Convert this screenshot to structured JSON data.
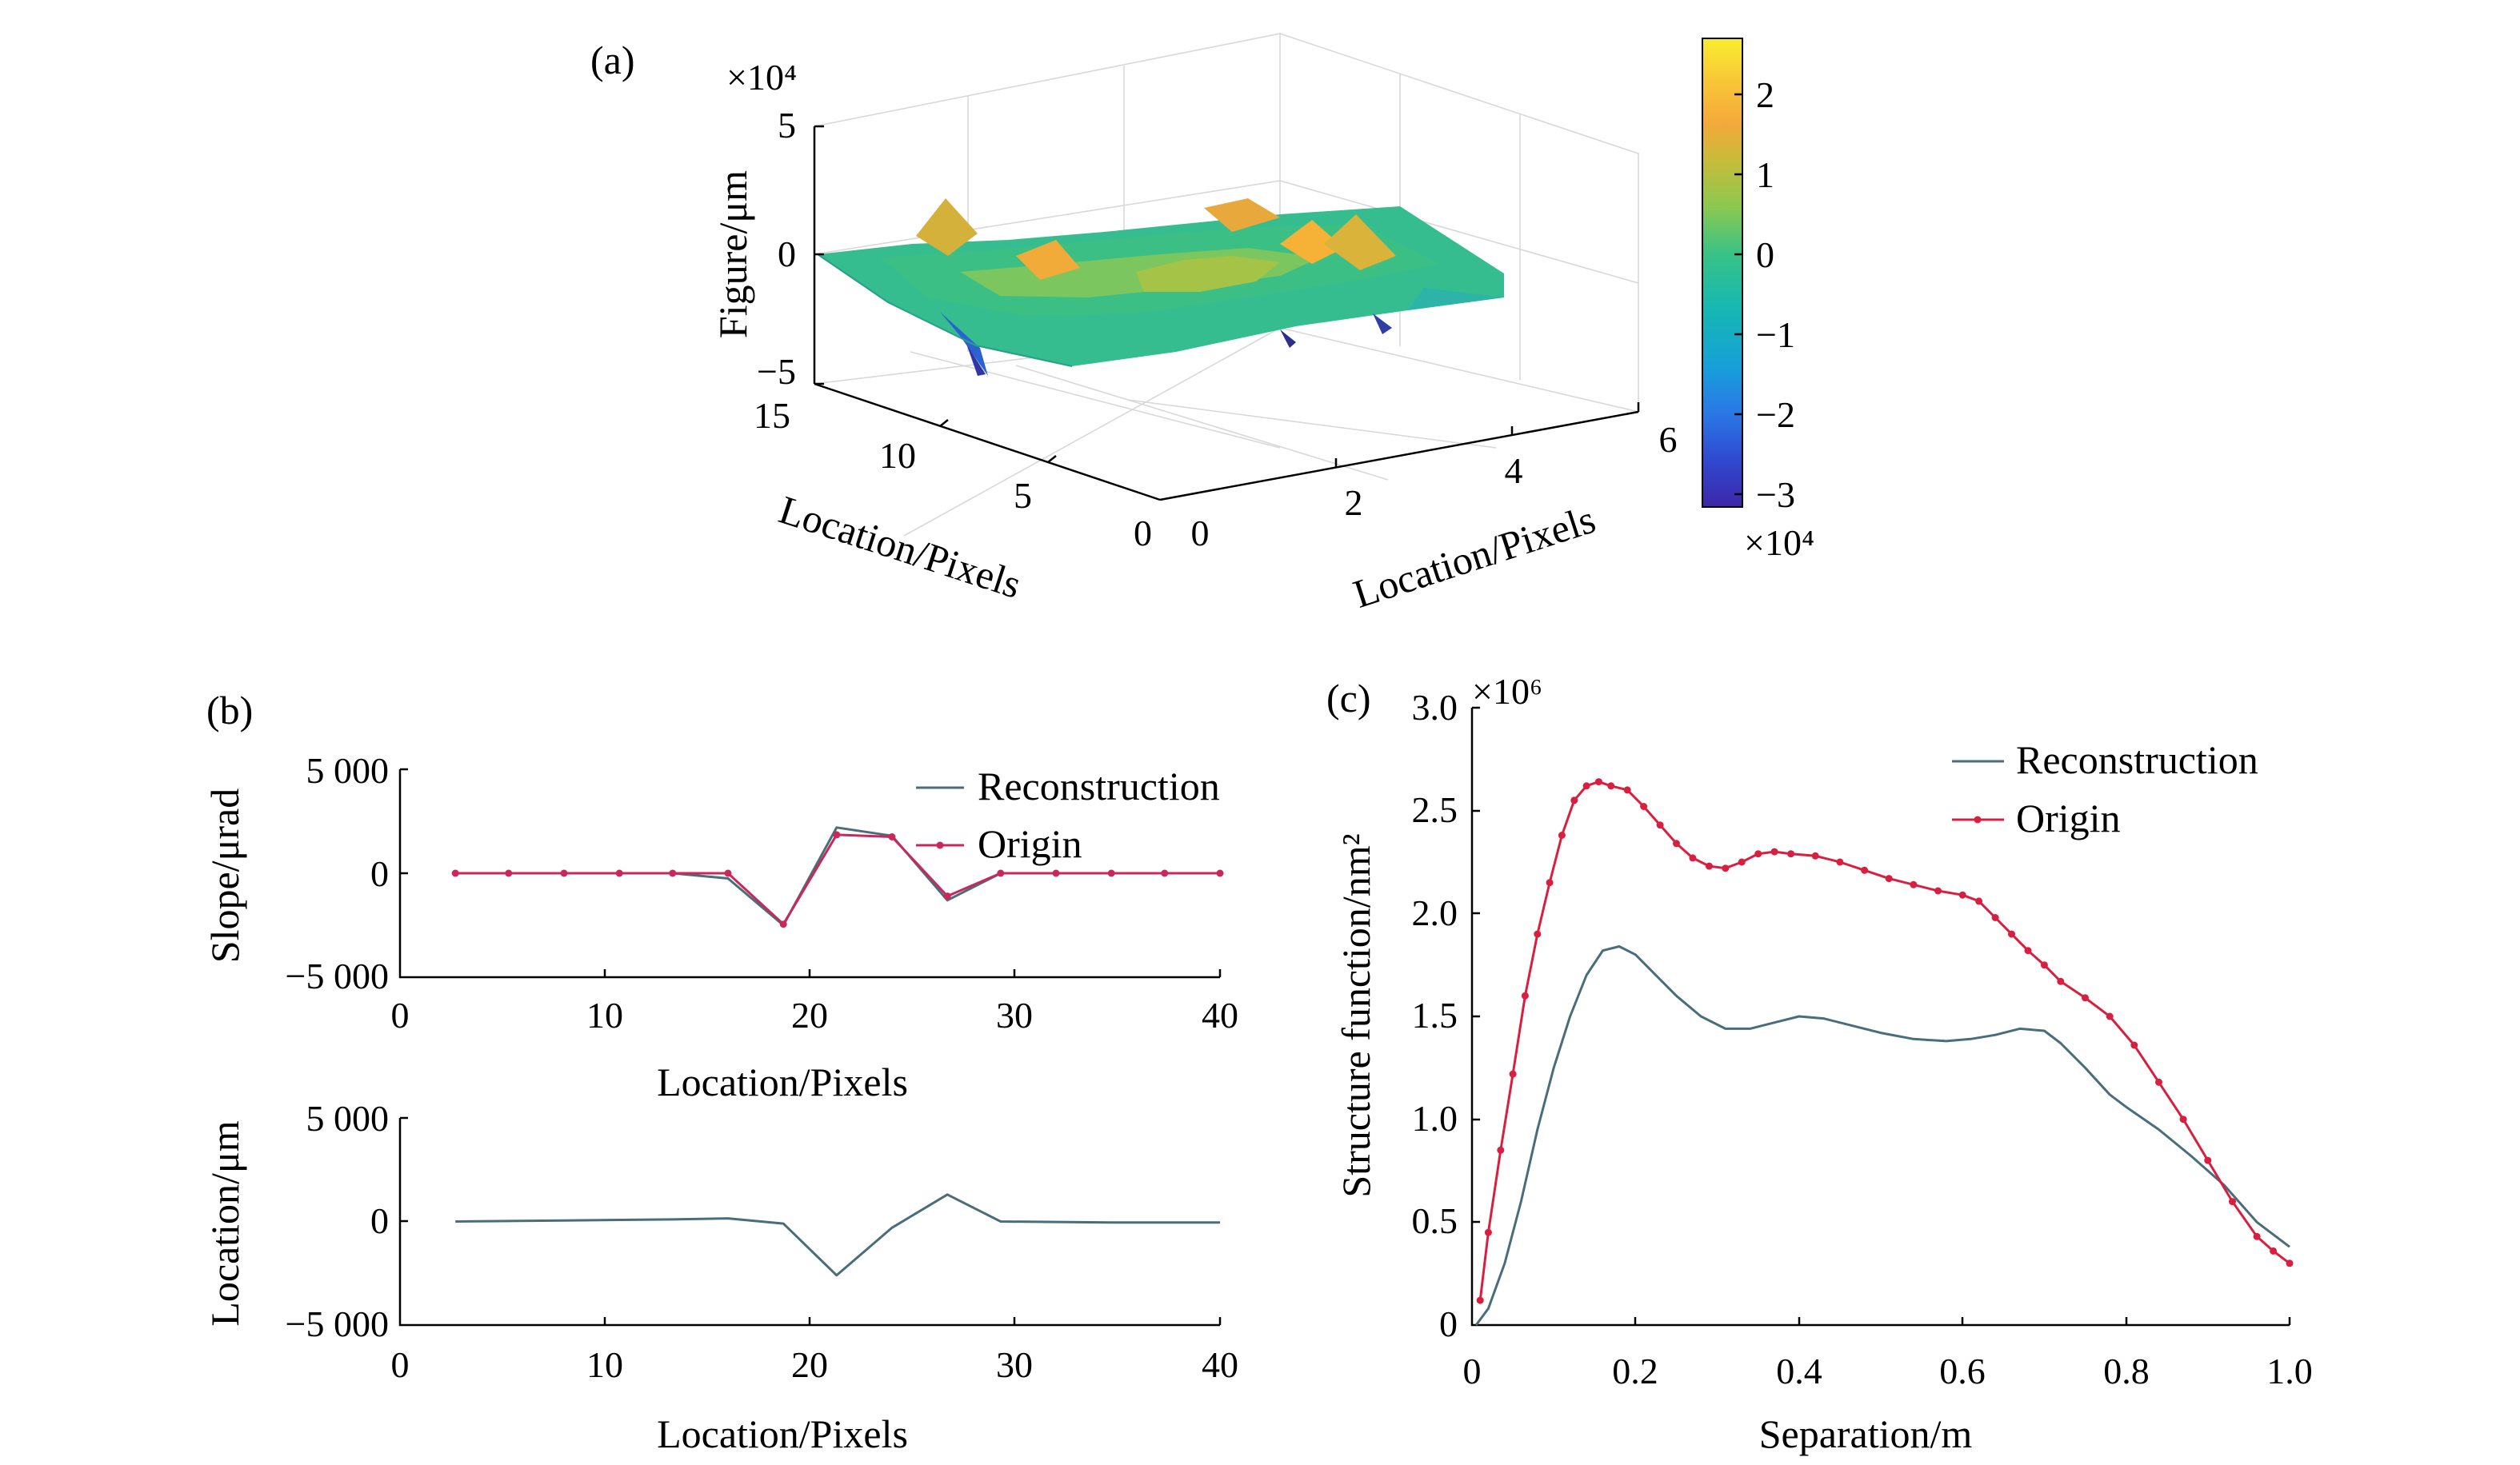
{
  "panel_a": {
    "label": "(a)",
    "z_exponent": "×10⁴",
    "z_label": "Figure/μm",
    "z_ticks": [
      "5",
      "0",
      "−5"
    ],
    "y_label": "Location/Pixels",
    "y_ticks": [
      "15",
      "10",
      "5",
      "0"
    ],
    "x_label": "Location/Pixels",
    "x_ticks": [
      "0",
      "2",
      "4",
      "6"
    ],
    "colorbar_ticks": [
      "2",
      "1",
      "0",
      "−1",
      "−2",
      "−3"
    ],
    "colorbar_exponent": "×10⁴",
    "colormap": [
      "#3e26a8",
      "#2f4ad0",
      "#2a78e6",
      "#17a0d8",
      "#16b7b3",
      "#38c286",
      "#8bc94f",
      "#c7bb3a",
      "#f4a93a",
      "#f7c737",
      "#f9ee2e"
    ]
  },
  "panel_b_top_labels": {
    "label": "(b)",
    "ylabel": "Slope/μrad",
    "xlabel": "Location/Pixels",
    "yticks": [
      "5 000",
      "0",
      "−5 000"
    ],
    "xticks": [
      "0",
      "10",
      "20",
      "30",
      "40"
    ],
    "legend": [
      "Reconstruction",
      "Origin"
    ]
  },
  "panel_b_bottom_labels": {
    "ylabel": "Location/μm",
    "xlabel": "Location/Pixels",
    "yticks": [
      "5 000",
      "0",
      "−5 000"
    ],
    "xticks": [
      "0",
      "10",
      "20",
      "30",
      "40"
    ]
  },
  "panel_c_labels": {
    "label": "(c)",
    "ylabel": "Structure function/nm²",
    "xlabel": "Separation/m",
    "exponent": "×10⁶",
    "yticks": [
      "3.0",
      "2.5",
      "2.0",
      "1.5",
      "1.0",
      "0.5",
      "0"
    ],
    "xticks": [
      "0",
      "0.2",
      "0.4",
      "0.6",
      "0.8",
      "1.0"
    ],
    "legend": [
      "Reconstruction",
      "Origin"
    ]
  },
  "chart_data": [
    {
      "type": "surface",
      "panel": "(a)",
      "zlabel": "Figure/μm",
      "xlabel": "Location/Pixels",
      "ylabel": "Location/Pixels",
      "x_range": [
        0,
        6
      ],
      "y_range": [
        0,
        15
      ],
      "z_range": [
        -5,
        5
      ],
      "z_scale": "×10⁴",
      "colorbar_range": [
        -3,
        2.6
      ]
    },
    {
      "type": "line",
      "panel": "(b) top",
      "xlabel": "Location/Pixels",
      "ylabel": "Slope/μrad",
      "xlim": [
        0,
        40
      ],
      "ylim": [
        -5000,
        5000
      ],
      "legend_position": "top-right",
      "series": [
        {
          "name": "Reconstruction",
          "color": "#4a6d7c",
          "x": [
            2.7,
            5.3,
            8,
            10.7,
            13.3,
            16,
            18.7,
            21.3,
            24,
            26.7,
            29.3,
            32,
            34.7,
            37.3,
            40
          ],
          "y": [
            0,
            0,
            0,
            0,
            0,
            -250,
            -2500,
            2200,
            1800,
            -1300,
            0,
            0,
            0,
            0,
            0
          ]
        },
        {
          "name": "Origin",
          "color": "#c8285a",
          "x": [
            2.7,
            5.3,
            8,
            10.7,
            13.3,
            16,
            18.7,
            21.3,
            24,
            26.7,
            29.3,
            32,
            34.7,
            37.3,
            40
          ],
          "y": [
            0,
            0,
            0,
            0,
            0,
            0,
            -2450,
            1850,
            1750,
            -1100,
            0,
            0,
            0,
            0,
            0
          ]
        }
      ]
    },
    {
      "type": "line",
      "panel": "(b) bottom",
      "xlabel": "Location/Pixels",
      "ylabel": "Location/μm",
      "xlim": [
        0,
        40
      ],
      "ylim": [
        -5000,
        5000
      ],
      "series": [
        {
          "color": "#4a6d7c",
          "x": [
            2.7,
            8,
            13.3,
            16,
            18.7,
            21.3,
            24,
            26.7,
            29.3,
            34.7,
            40
          ],
          "y": [
            0,
            50,
            100,
            150,
            -100,
            -2600,
            -300,
            1300,
            0,
            -50,
            -50
          ]
        }
      ]
    },
    {
      "type": "line",
      "panel": "(c)",
      "xlabel": "Separation/m",
      "ylabel": "Structure function/nm²",
      "y_scale": "×10⁶",
      "xlim": [
        0,
        1.0
      ],
      "ylim": [
        0,
        3.0
      ],
      "legend_position": "top-right",
      "series": [
        {
          "name": "Reconstruction",
          "color": "#4a6d7c",
          "x": [
            0.005,
            0.02,
            0.04,
            0.06,
            0.08,
            0.1,
            0.12,
            0.14,
            0.16,
            0.18,
            0.2,
            0.22,
            0.25,
            0.28,
            0.31,
            0.34,
            0.37,
            0.4,
            0.43,
            0.46,
            0.5,
            0.54,
            0.58,
            0.61,
            0.64,
            0.67,
            0.7,
            0.72,
            0.75,
            0.78,
            0.8,
            0.84,
            0.88,
            0.92,
            0.96,
            1.0
          ],
          "y": [
            0.0,
            0.08,
            0.3,
            0.6,
            0.95,
            1.25,
            1.5,
            1.7,
            1.82,
            1.84,
            1.8,
            1.72,
            1.6,
            1.5,
            1.44,
            1.44,
            1.47,
            1.5,
            1.49,
            1.46,
            1.42,
            1.39,
            1.38,
            1.39,
            1.41,
            1.44,
            1.43,
            1.37,
            1.25,
            1.12,
            1.06,
            0.95,
            0.82,
            0.68,
            0.5,
            0.38
          ]
        },
        {
          "name": "Origin",
          "color": "#d81f3f",
          "x": [
            0.01,
            0.02,
            0.035,
            0.05,
            0.065,
            0.08,
            0.095,
            0.11,
            0.125,
            0.14,
            0.155,
            0.17,
            0.19,
            0.21,
            0.23,
            0.25,
            0.27,
            0.29,
            0.31,
            0.33,
            0.35,
            0.37,
            0.39,
            0.42,
            0.45,
            0.48,
            0.51,
            0.54,
            0.57,
            0.6,
            0.62,
            0.64,
            0.66,
            0.68,
            0.7,
            0.72,
            0.75,
            0.78,
            0.81,
            0.84,
            0.87,
            0.9,
            0.93,
            0.96,
            0.98,
            1.0
          ],
          "y": [
            0.12,
            0.45,
            0.85,
            1.22,
            1.6,
            1.9,
            2.15,
            2.38,
            2.55,
            2.62,
            2.64,
            2.62,
            2.6,
            2.52,
            2.43,
            2.34,
            2.27,
            2.23,
            2.22,
            2.25,
            2.29,
            2.3,
            2.29,
            2.28,
            2.25,
            2.21,
            2.17,
            2.14,
            2.11,
            2.09,
            2.06,
            1.98,
            1.9,
            1.82,
            1.75,
            1.67,
            1.59,
            1.5,
            1.36,
            1.18,
            1.0,
            0.8,
            0.6,
            0.43,
            0.36,
            0.3
          ]
        }
      ]
    }
  ]
}
